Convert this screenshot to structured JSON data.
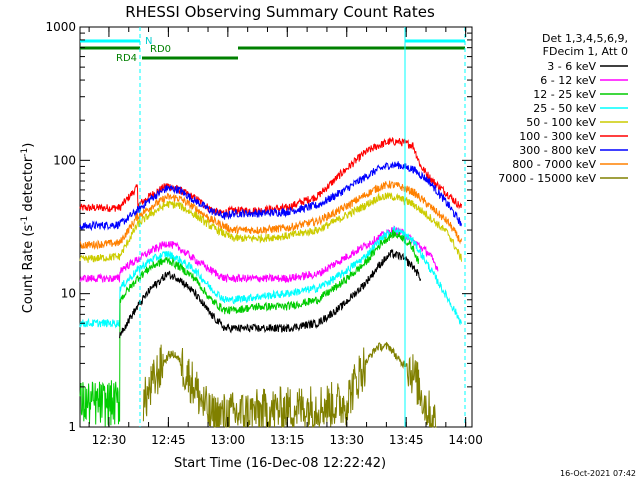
{
  "chart_data": {
    "type": "line",
    "title": "RHESSI Observing Summary Count Rates",
    "xlabel": "Start Time (16-Dec-08 12:22:42)",
    "ylabel_main": "Count Rate (s",
    "ylabel_sup1": "-1",
    "ylabel_mid": " detector",
    "ylabel_sup2": "-1",
    "ylabel_end": ")",
    "ylim": [
      1,
      1000
    ],
    "y_scale": "log",
    "y_ticks": [
      {
        "value": 1,
        "label": "1"
      },
      {
        "value": 10,
        "label": "10"
      },
      {
        "value": 100,
        "label": "100"
      },
      {
        "value": 1000,
        "label": "1000"
      }
    ],
    "x_start_min": 0,
    "x_end_min": 97.3,
    "x_ticks": [
      {
        "value": 7.3,
        "label": "12:30"
      },
      {
        "value": 22.3,
        "label": "12:45"
      },
      {
        "value": 37.3,
        "label": "13:00"
      },
      {
        "value": 52.3,
        "label": "13:15"
      },
      {
        "value": 67.3,
        "label": "13:30"
      },
      {
        "value": 82.3,
        "label": "13:45"
      },
      {
        "value": 97.3,
        "label": "14:00"
      }
    ],
    "legend": {
      "placement": "right",
      "header": [
        "Det 1,3,4,5,6,9,",
        "FDecim 1, Att 0"
      ],
      "entries": [
        {
          "label": "3 - 6 keV",
          "color": "#000000"
        },
        {
          "label": "6 - 12 keV",
          "color": "#ff00ff"
        },
        {
          "label": "12 - 25 keV",
          "color": "#00cc00"
        },
        {
          "label": "25 - 50 keV",
          "color": "#00ffff"
        },
        {
          "label": "50 - 100 keV",
          "color": "#cccc00"
        },
        {
          "label": "100 - 300 keV",
          "color": "#ff0000"
        },
        {
          "label": "300 - 800 keV",
          "color": "#0000ff"
        },
        {
          "label": "800 - 7000 keV",
          "color": "#ff8000"
        },
        {
          "label": "7000 - 15000 keV",
          "color": "#808000"
        }
      ]
    },
    "series": [
      {
        "color": "#ff0000",
        "x": [
          0,
          10,
          14.5,
          14.6,
          18,
          22,
          25,
          29,
          33,
          35.3,
          38.5,
          45,
          52,
          60,
          66,
          72,
          75,
          78,
          80.5,
          84,
          86,
          89,
          93,
          96.3
        ],
        "y": [
          44,
          44,
          63,
          46,
          55,
          65,
          60,
          52,
          43,
          40,
          42,
          42,
          44,
          54,
          80,
          115,
          128,
          138,
          138,
          130,
          90,
          70,
          55,
          44
        ]
      },
      {
        "color": "#0000ff",
        "x": [
          0,
          10,
          14.5,
          18,
          22,
          25,
          29,
          33,
          36.5,
          38.5,
          45,
          52,
          60,
          66,
          72,
          75,
          78,
          80.5,
          84,
          88,
          93,
          96.3
        ],
        "y": [
          32,
          33,
          42,
          52,
          62,
          60,
          50,
          42,
          38,
          40,
          40,
          41,
          46,
          58,
          75,
          85,
          92,
          92,
          86,
          70,
          46,
          33
        ]
      },
      {
        "color": "#ff8000",
        "x": [
          0,
          10,
          14.5,
          18,
          22,
          25,
          29,
          33,
          36.5,
          38.5,
          45,
          52,
          60,
          66,
          72,
          75,
          78,
          80.5,
          84,
          88,
          93,
          96.3
        ],
        "y": [
          23,
          24,
          38,
          45,
          53,
          52,
          44,
          36,
          32,
          30,
          30,
          31,
          35,
          43,
          55,
          62,
          66,
          64,
          58,
          46,
          34,
          24
        ]
      },
      {
        "color": "#cccc00",
        "x": [
          0,
          10,
          14.5,
          18,
          22,
          25,
          29,
          33,
          36.5,
          38.5,
          45,
          52,
          60,
          66,
          72,
          75,
          78,
          80.5,
          84,
          88,
          93,
          96.3
        ],
        "y": [
          18,
          19,
          33,
          40,
          47,
          46,
          39,
          32,
          28,
          26,
          26,
          27,
          30,
          37,
          46,
          52,
          54,
          52,
          47,
          38,
          28,
          18
        ]
      },
      {
        "color": "#ff00ff",
        "x": [
          0,
          10,
          10.1,
          14.5,
          18,
          22,
          25,
          29,
          33,
          36.5,
          38.5,
          45,
          52,
          60,
          66,
          72,
          76,
          79,
          81,
          84,
          88,
          90.5
        ],
        "y": [
          13,
          13,
          15,
          18,
          21,
          24,
          22,
          18,
          15,
          13,
          13,
          13,
          13,
          14,
          18,
          23,
          27,
          30,
          29,
          25,
          20,
          15
        ]
      },
      {
        "color": "#00ffff",
        "x": [
          0,
          10,
          10.1,
          14.5,
          18,
          22,
          25,
          29,
          33,
          36.5,
          38.5,
          45,
          52,
          60,
          66,
          72,
          76,
          79,
          81,
          84,
          88,
          93,
          96.3
        ],
        "y": [
          6,
          6,
          11,
          15,
          18,
          20,
          18,
          15,
          11,
          9,
          9,
          9.5,
          10,
          11,
          14,
          19,
          26,
          30,
          29,
          25,
          16,
          9,
          6
        ]
      },
      {
        "color": "#00cc00",
        "x": [
          0,
          10,
          10.1,
          14.5,
          18,
          22,
          25,
          29,
          33,
          36.5,
          38.5,
          45,
          52,
          60,
          66,
          72,
          76,
          79,
          81,
          84,
          85.5
        ],
        "y": [
          1.5,
          1.5,
          9,
          13,
          16,
          18,
          16,
          13,
          9,
          7.5,
          7.5,
          8,
          8,
          9,
          12,
          17,
          24,
          28,
          27,
          22,
          17
        ]
      },
      {
        "color": "#000000",
        "x": [
          10,
          10.1,
          14.5,
          18,
          22,
          25,
          29,
          33,
          36.5,
          38.5,
          45,
          52,
          60,
          66,
          72,
          76,
          78.5,
          81,
          84,
          86
        ],
        "y": [
          4.5,
          5,
          8,
          11,
          14,
          13,
          10,
          7,
          5.5,
          5.5,
          5.5,
          5.5,
          6,
          8,
          12,
          17,
          20,
          19,
          16,
          13
        ]
      },
      {
        "color": "#808000",
        "x": [
          16,
          18,
          19.5,
          21,
          22.5,
          24,
          25.5,
          27,
          29,
          31,
          33,
          67,
          69,
          70.5,
          72,
          73.5,
          75,
          76.5,
          78,
          79.5,
          81,
          82.5,
          84,
          85.5,
          87,
          88.5,
          90
        ],
        "y": [
          1.5,
          2,
          2.5,
          3,
          3.5,
          3.5,
          3,
          2.5,
          2,
          1.5,
          1.2,
          1.5,
          2,
          2.5,
          3,
          3.5,
          4,
          4,
          4,
          3.5,
          3,
          3,
          2.5,
          2,
          1.5,
          1.2,
          1
        ]
      }
    ],
    "attenuator_bars": [
      {
        "label": "RD0",
        "color": "#008000",
        "segments": [
          [
            0,
            37.5,
            640
          ],
          [
            14.6,
            37.5,
            620
          ]
        ]
      },
      {
        "label": "N",
        "color": "#00ffff"
      },
      {
        "label": "RD4",
        "color": "#008000"
      }
    ],
    "flags": {
      "n_label": "N",
      "rd0_label": "RD0",
      "rd4_label": "RD4"
    },
    "timestamp": "16-Oct-2021 07:42"
  }
}
